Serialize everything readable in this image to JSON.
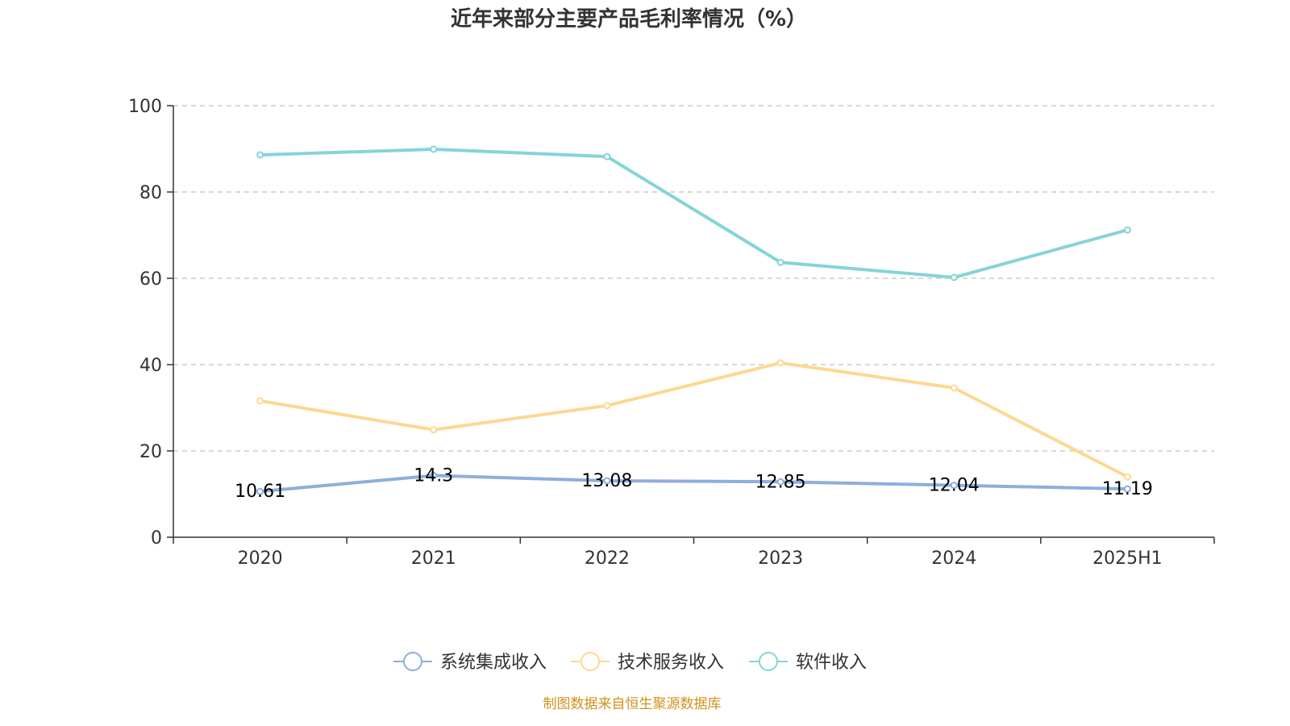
{
  "chart_data": {
    "type": "line",
    "title": "近年来部分主要产品毛利率情况（%）",
    "categories": [
      "2020",
      "2021",
      "2022",
      "2023",
      "2024",
      "2025H1"
    ],
    "ylim": [
      0,
      100
    ],
    "yticks": [
      0,
      20,
      40,
      60,
      80,
      100
    ],
    "grid": true,
    "legend_position": "bottom",
    "series": [
      {
        "name": "系统集成收入",
        "color": "#8eaedc",
        "values": [
          10.61,
          14.3,
          13.08,
          12.85,
          12.04,
          11.19
        ],
        "show_labels": true
      },
      {
        "name": "技术服务收入",
        "color": "#fdd893",
        "values": [
          31.6,
          24.9,
          30.5,
          40.4,
          34.6,
          14.0
        ],
        "show_labels": false
      },
      {
        "name": "软件收入",
        "color": "#86d4d6",
        "values": [
          88.6,
          89.9,
          88.2,
          63.7,
          60.2,
          71.2
        ],
        "show_labels": false
      }
    ]
  },
  "source": "制图数据来自恒生聚源数据库",
  "colors": {
    "source_text": "#d4901c",
    "axis": "#333333",
    "grid": "#cccccc"
  }
}
